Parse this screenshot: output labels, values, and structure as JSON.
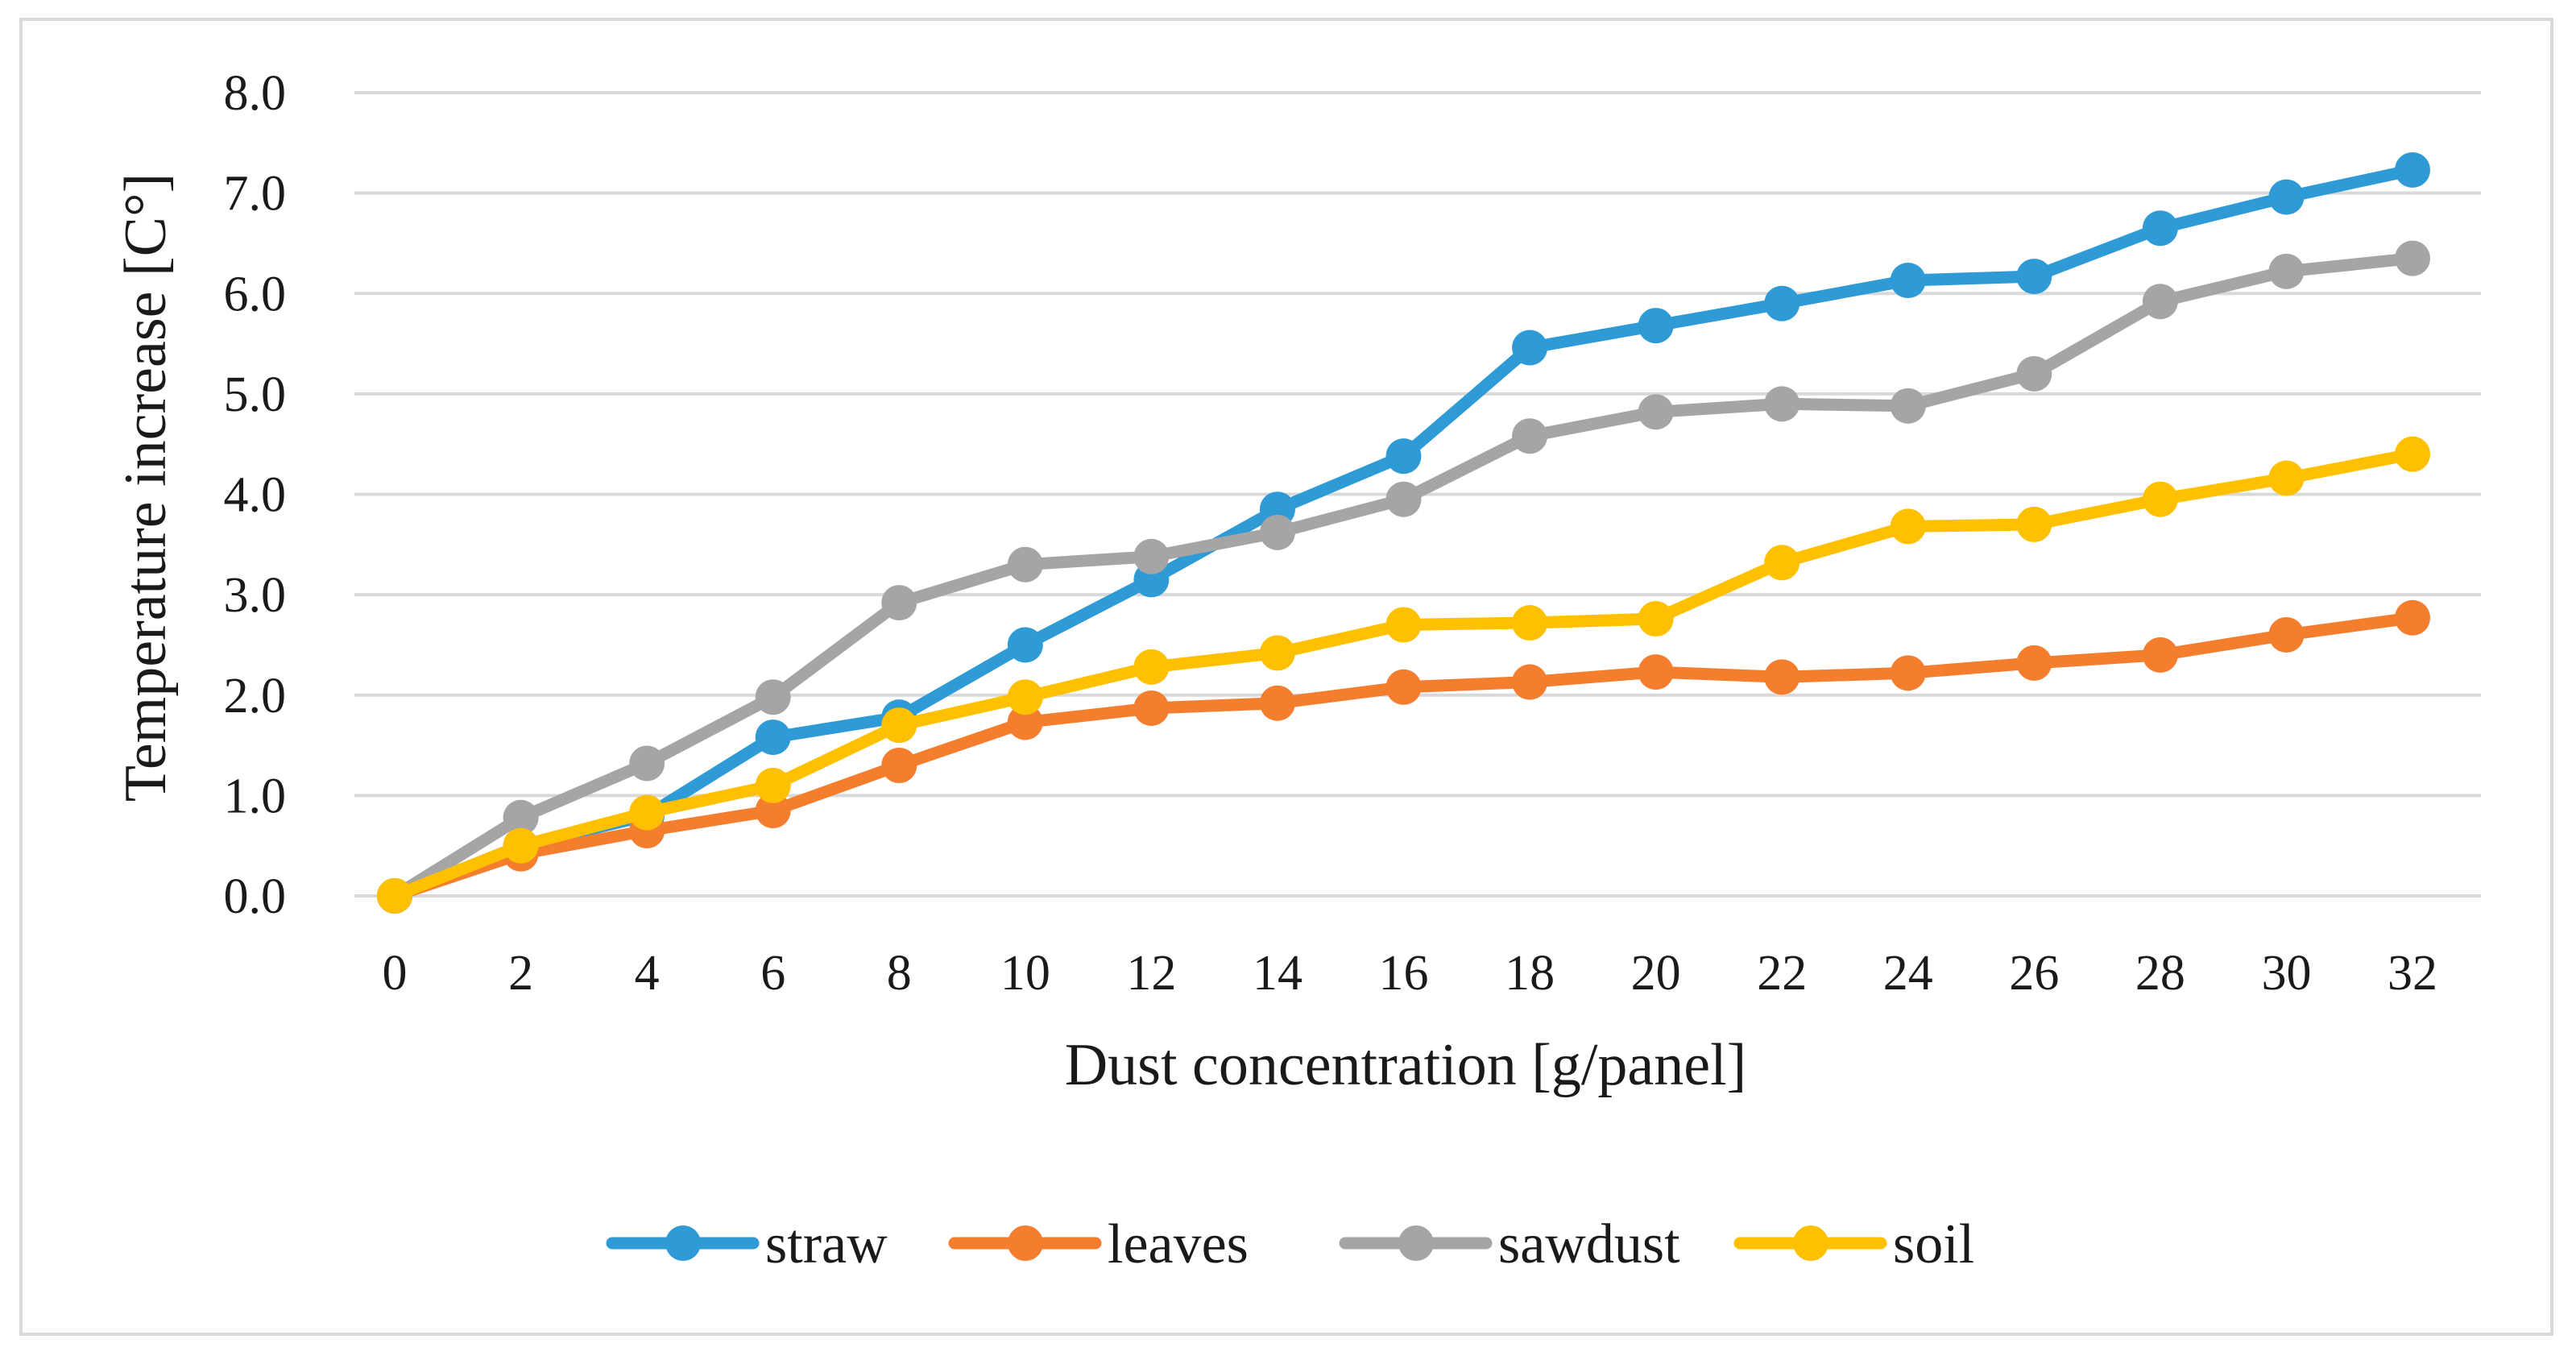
{
  "chart_data": {
    "type": "line",
    "title": "",
    "xlabel": "Dust concentration [g/panel]",
    "ylabel": "Temperature increase [C°]",
    "x": [
      0,
      2,
      4,
      6,
      8,
      10,
      12,
      14,
      16,
      18,
      20,
      22,
      24,
      26,
      28,
      30,
      32
    ],
    "x_tick_labels": [
      "0",
      "2",
      "4",
      "6",
      "8",
      "10",
      "12",
      "14",
      "16",
      "18",
      "20",
      "22",
      "24",
      "26",
      "28",
      "30",
      "32"
    ],
    "ylim": [
      0,
      8
    ],
    "y_ticks": [
      0,
      1,
      2,
      3,
      4,
      5,
      6,
      7,
      8
    ],
    "y_tick_labels": [
      "0.0",
      "1.0",
      "2.0",
      "3.0",
      "4.0",
      "5.0",
      "6.0",
      "7.0",
      "8.0"
    ],
    "grid": true,
    "legend_position": "bottom",
    "series": [
      {
        "name": "straw",
        "color": "#2e9bd6",
        "values": [
          0,
          0.5,
          0.8,
          1.58,
          1.78,
          2.5,
          3.15,
          3.85,
          4.38,
          5.46,
          5.68,
          5.9,
          6.13,
          6.17,
          6.65,
          6.96,
          7.23
        ]
      },
      {
        "name": "leaves",
        "color": "#f47d2e",
        "values": [
          0,
          0.42,
          0.65,
          0.85,
          1.3,
          1.73,
          1.87,
          1.92,
          2.08,
          2.13,
          2.23,
          2.18,
          2.22,
          2.32,
          2.4,
          2.6,
          2.77
        ]
      },
      {
        "name": "sawdust",
        "color": "#a5a5a5",
        "values": [
          0,
          0.78,
          1.32,
          1.98,
          2.92,
          3.3,
          3.38,
          3.62,
          3.95,
          4.58,
          4.82,
          4.9,
          4.88,
          5.2,
          5.92,
          6.22,
          6.35
        ]
      },
      {
        "name": "soil",
        "color": "#ffc000",
        "values": [
          0,
          0.5,
          0.83,
          1.1,
          1.7,
          1.98,
          2.28,
          2.42,
          2.7,
          2.72,
          2.76,
          3.32,
          3.68,
          3.7,
          3.95,
          4.16,
          4.4
        ]
      }
    ]
  }
}
